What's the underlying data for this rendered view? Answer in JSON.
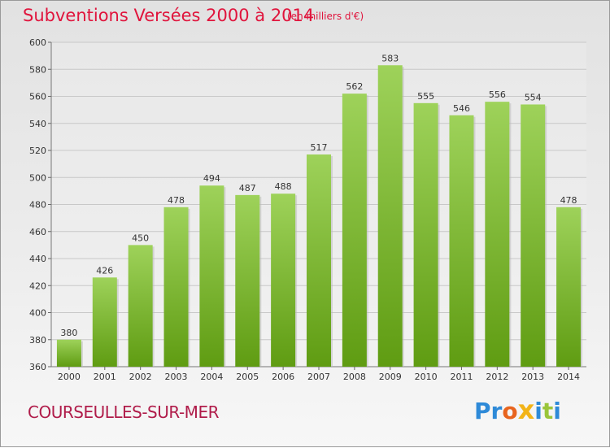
{
  "header": {
    "title": "Subventions Versées 2000 à 2014",
    "subtitle": "(en milliers d'€)"
  },
  "footer": {
    "commune": "COURSEULLES-SUR-MER",
    "logo_text": "Proxiti"
  },
  "colors": {
    "bar_top": "#9ed25a",
    "bar_bottom": "#5f9c12",
    "title": "#e0143c",
    "logo": [
      "#2e8ad8",
      "#2e8ad8",
      "#e8641e",
      "#f2b418",
      "#2e8ad8",
      "#9ac53a",
      "#2e8ad8"
    ]
  },
  "chart_data": {
    "type": "bar",
    "categories": [
      "2000",
      "2001",
      "2002",
      "2003",
      "2004",
      "2005",
      "2006",
      "2007",
      "2008",
      "2009",
      "2010",
      "2011",
      "2012",
      "2013",
      "2014"
    ],
    "values": [
      380,
      426,
      450,
      478,
      494,
      487,
      488,
      517,
      562,
      583,
      555,
      546,
      556,
      554,
      478
    ],
    "ylim": [
      360,
      600
    ],
    "yticks": [
      360,
      380,
      400,
      420,
      440,
      460,
      480,
      500,
      520,
      540,
      560,
      580,
      600
    ],
    "grid": true,
    "title": "Subventions Versées 2000 à 2014",
    "xlabel": "",
    "ylabel": ""
  }
}
